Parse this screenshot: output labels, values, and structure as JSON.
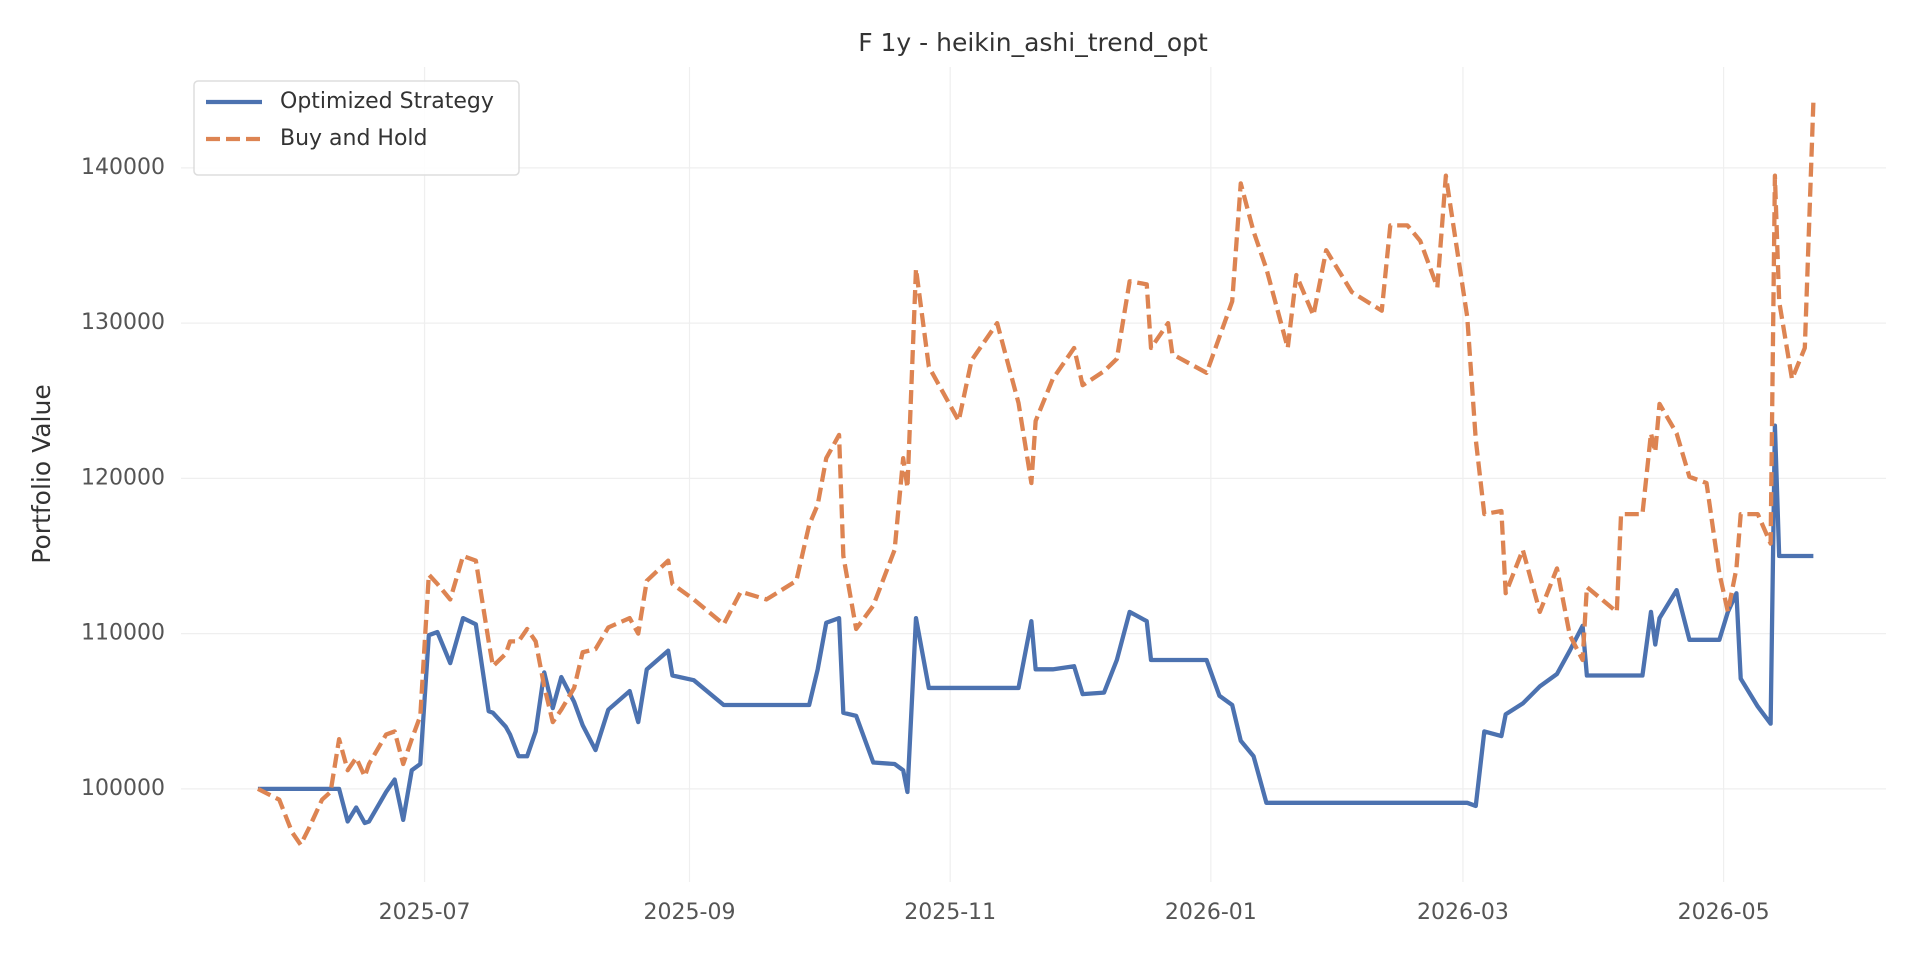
{
  "chart_data": {
    "type": "line",
    "title": "F 1y - heikin_ashi_trend_opt",
    "ylabel": "Portfolio Value",
    "x": [
      "2025-05-23",
      "2025-05-28",
      "2025-05-31",
      "2025-06-02",
      "2025-06-04",
      "2025-06-07",
      "2025-06-09",
      "2025-06-11",
      "2025-06-13",
      "2025-06-15",
      "2025-06-17",
      "2025-06-18",
      "2025-06-22",
      "2025-06-24",
      "2025-06-26",
      "2025-06-28",
      "2025-06-30",
      "2025-07-02",
      "2025-07-04",
      "2025-07-07",
      "2025-07-10",
      "2025-07-13",
      "2025-07-16",
      "2025-07-17",
      "2025-07-20",
      "2025-07-21",
      "2025-07-23",
      "2025-07-25",
      "2025-07-27",
      "2025-07-29",
      "2025-07-31",
      "2025-08-02",
      "2025-08-05",
      "2025-08-07",
      "2025-08-10",
      "2025-08-13",
      "2025-08-18",
      "2025-08-20",
      "2025-08-22",
      "2025-08-27",
      "2025-08-28",
      "2025-09-02",
      "2025-09-09",
      "2025-09-13",
      "2025-09-19",
      "2025-09-26",
      "2025-09-29",
      "2025-10-01",
      "2025-10-03",
      "2025-10-06",
      "2025-10-07",
      "2025-10-10",
      "2025-10-14",
      "2025-10-19",
      "2025-10-21",
      "2025-10-22",
      "2025-10-24",
      "2025-10-27",
      "2025-11-03",
      "2025-11-06",
      "2025-11-12",
      "2025-11-17",
      "2025-11-20",
      "2025-11-21",
      "2025-11-25",
      "2025-11-30",
      "2025-12-02",
      "2025-12-07",
      "2025-12-10",
      "2025-12-13",
      "2025-12-17",
      "2025-12-18",
      "2025-12-22",
      "2025-12-23",
      "2025-12-31",
      "2026-01-03",
      "2026-01-06",
      "2026-01-08",
      "2026-01-11",
      "2026-01-14",
      "2026-01-19",
      "2026-01-21",
      "2026-01-25",
      "2026-01-28",
      "2026-02-03",
      "2026-02-10",
      "2026-02-12",
      "2026-02-16",
      "2026-02-19",
      "2026-02-23",
      "2026-02-25",
      "2026-03-02",
      "2026-03-04",
      "2026-03-06",
      "2026-03-10",
      "2026-03-11",
      "2026-03-15",
      "2026-03-19",
      "2026-03-23",
      "2026-03-26",
      "2026-03-29",
      "2026-03-30",
      "2026-04-06",
      "2026-04-07",
      "2026-04-12",
      "2026-04-14",
      "2026-04-15",
      "2026-04-16",
      "2026-04-20",
      "2026-04-23",
      "2026-04-27",
      "2026-04-30",
      "2026-05-02",
      "2026-05-04",
      "2026-05-05",
      "2026-05-09",
      "2026-05-12",
      "2026-05-13",
      "2026-05-14",
      "2026-05-17",
      "2026-05-20",
      "2026-05-22"
    ],
    "series": [
      {
        "name": "Optimized Strategy",
        "color": "#4c72b0",
        "dash": false,
        "values": [
          100000,
          100000,
          100000,
          100000,
          100000,
          100000,
          100000,
          100000,
          97900,
          98800,
          97800,
          97900,
          99800,
          100600,
          98000,
          101200,
          101600,
          109900,
          110100,
          108100,
          111000,
          110600,
          105000,
          104900,
          104000,
          103500,
          102100,
          102100,
          103700,
          107500,
          105200,
          107200,
          105600,
          104100,
          102500,
          105100,
          106300,
          104300,
          107700,
          108900,
          107300,
          107000,
          105400,
          105400,
          105400,
          105400,
          105400,
          107700,
          110700,
          111000,
          104900,
          104700,
          101700,
          101600,
          101200,
          99800,
          111000,
          106500,
          106500,
          106500,
          106500,
          106500,
          110800,
          107700,
          107700,
          107900,
          106100,
          106200,
          108300,
          111400,
          110800,
          108300,
          108300,
          108300,
          108300,
          106000,
          105400,
          103100,
          102100,
          99100,
          99100,
          99100,
          99100,
          99100,
          99100,
          99100,
          99100,
          99100,
          99100,
          99100,
          99100,
          99100,
          98900,
          103700,
          103400,
          104800,
          105500,
          106600,
          107400,
          108900,
          110500,
          107300,
          107300,
          107300,
          107300,
          111400,
          109300,
          111000,
          112800,
          109600,
          109600,
          109600,
          111400,
          112600,
          107100,
          105300,
          104200,
          123400,
          115000,
          115000,
          115000,
          115000
        ]
      },
      {
        "name": "Buy and Hold",
        "color": "#dd8452",
        "dash": true,
        "values": [
          100000,
          99300,
          97200,
          96400,
          97500,
          99300,
          99800,
          103200,
          101200,
          102000,
          100800,
          101600,
          103500,
          103700,
          101600,
          103200,
          104700,
          113800,
          113200,
          112200,
          115000,
          114700,
          109500,
          107900,
          108700,
          109500,
          109500,
          110300,
          109500,
          106600,
          104300,
          105100,
          106500,
          108800,
          109000,
          110400,
          111000,
          110000,
          113400,
          114700,
          113200,
          112200,
          110600,
          112700,
          112200,
          113400,
          117000,
          118300,
          121300,
          122800,
          115000,
          110300,
          111800,
          115400,
          121300,
          119400,
          133500,
          127200,
          123700,
          127600,
          130000,
          124850,
          119700,
          123700,
          126400,
          128400,
          126000,
          126900,
          127700,
          132700,
          132500,
          128400,
          130000,
          128000,
          126800,
          129100,
          131400,
          139000,
          135900,
          133500,
          128400,
          133100,
          130500,
          134700,
          132000,
          130800,
          136300,
          136300,
          135300,
          132300,
          139500,
          130400,
          122500,
          117700,
          117900,
          112600,
          115400,
          111400,
          114200,
          109900,
          108300,
          113000,
          111400,
          117700,
          117700,
          122900,
          121700,
          124800,
          122900,
          120100,
          119700,
          113900,
          111400,
          114200,
          117700,
          117700,
          115800,
          139500,
          131400,
          126400,
          128400,
          144200
        ]
      }
    ],
    "xlim": [
      "2025-05-05",
      "2026-06-08"
    ],
    "xticks": [
      {
        "value": "2025-07-01",
        "label": "2025-07"
      },
      {
        "value": "2025-09-01",
        "label": "2025-09"
      },
      {
        "value": "2025-11-01",
        "label": "2025-11"
      },
      {
        "value": "2026-01-01",
        "label": "2026-01"
      },
      {
        "value": "2026-03-01",
        "label": "2026-03"
      },
      {
        "value": "2026-05-01",
        "label": "2026-05"
      }
    ],
    "ylim": [
      94000,
      146500
    ],
    "yticks": [
      100000,
      110000,
      120000,
      130000,
      140000
    ],
    "grid": true,
    "legend": "upper left"
  }
}
